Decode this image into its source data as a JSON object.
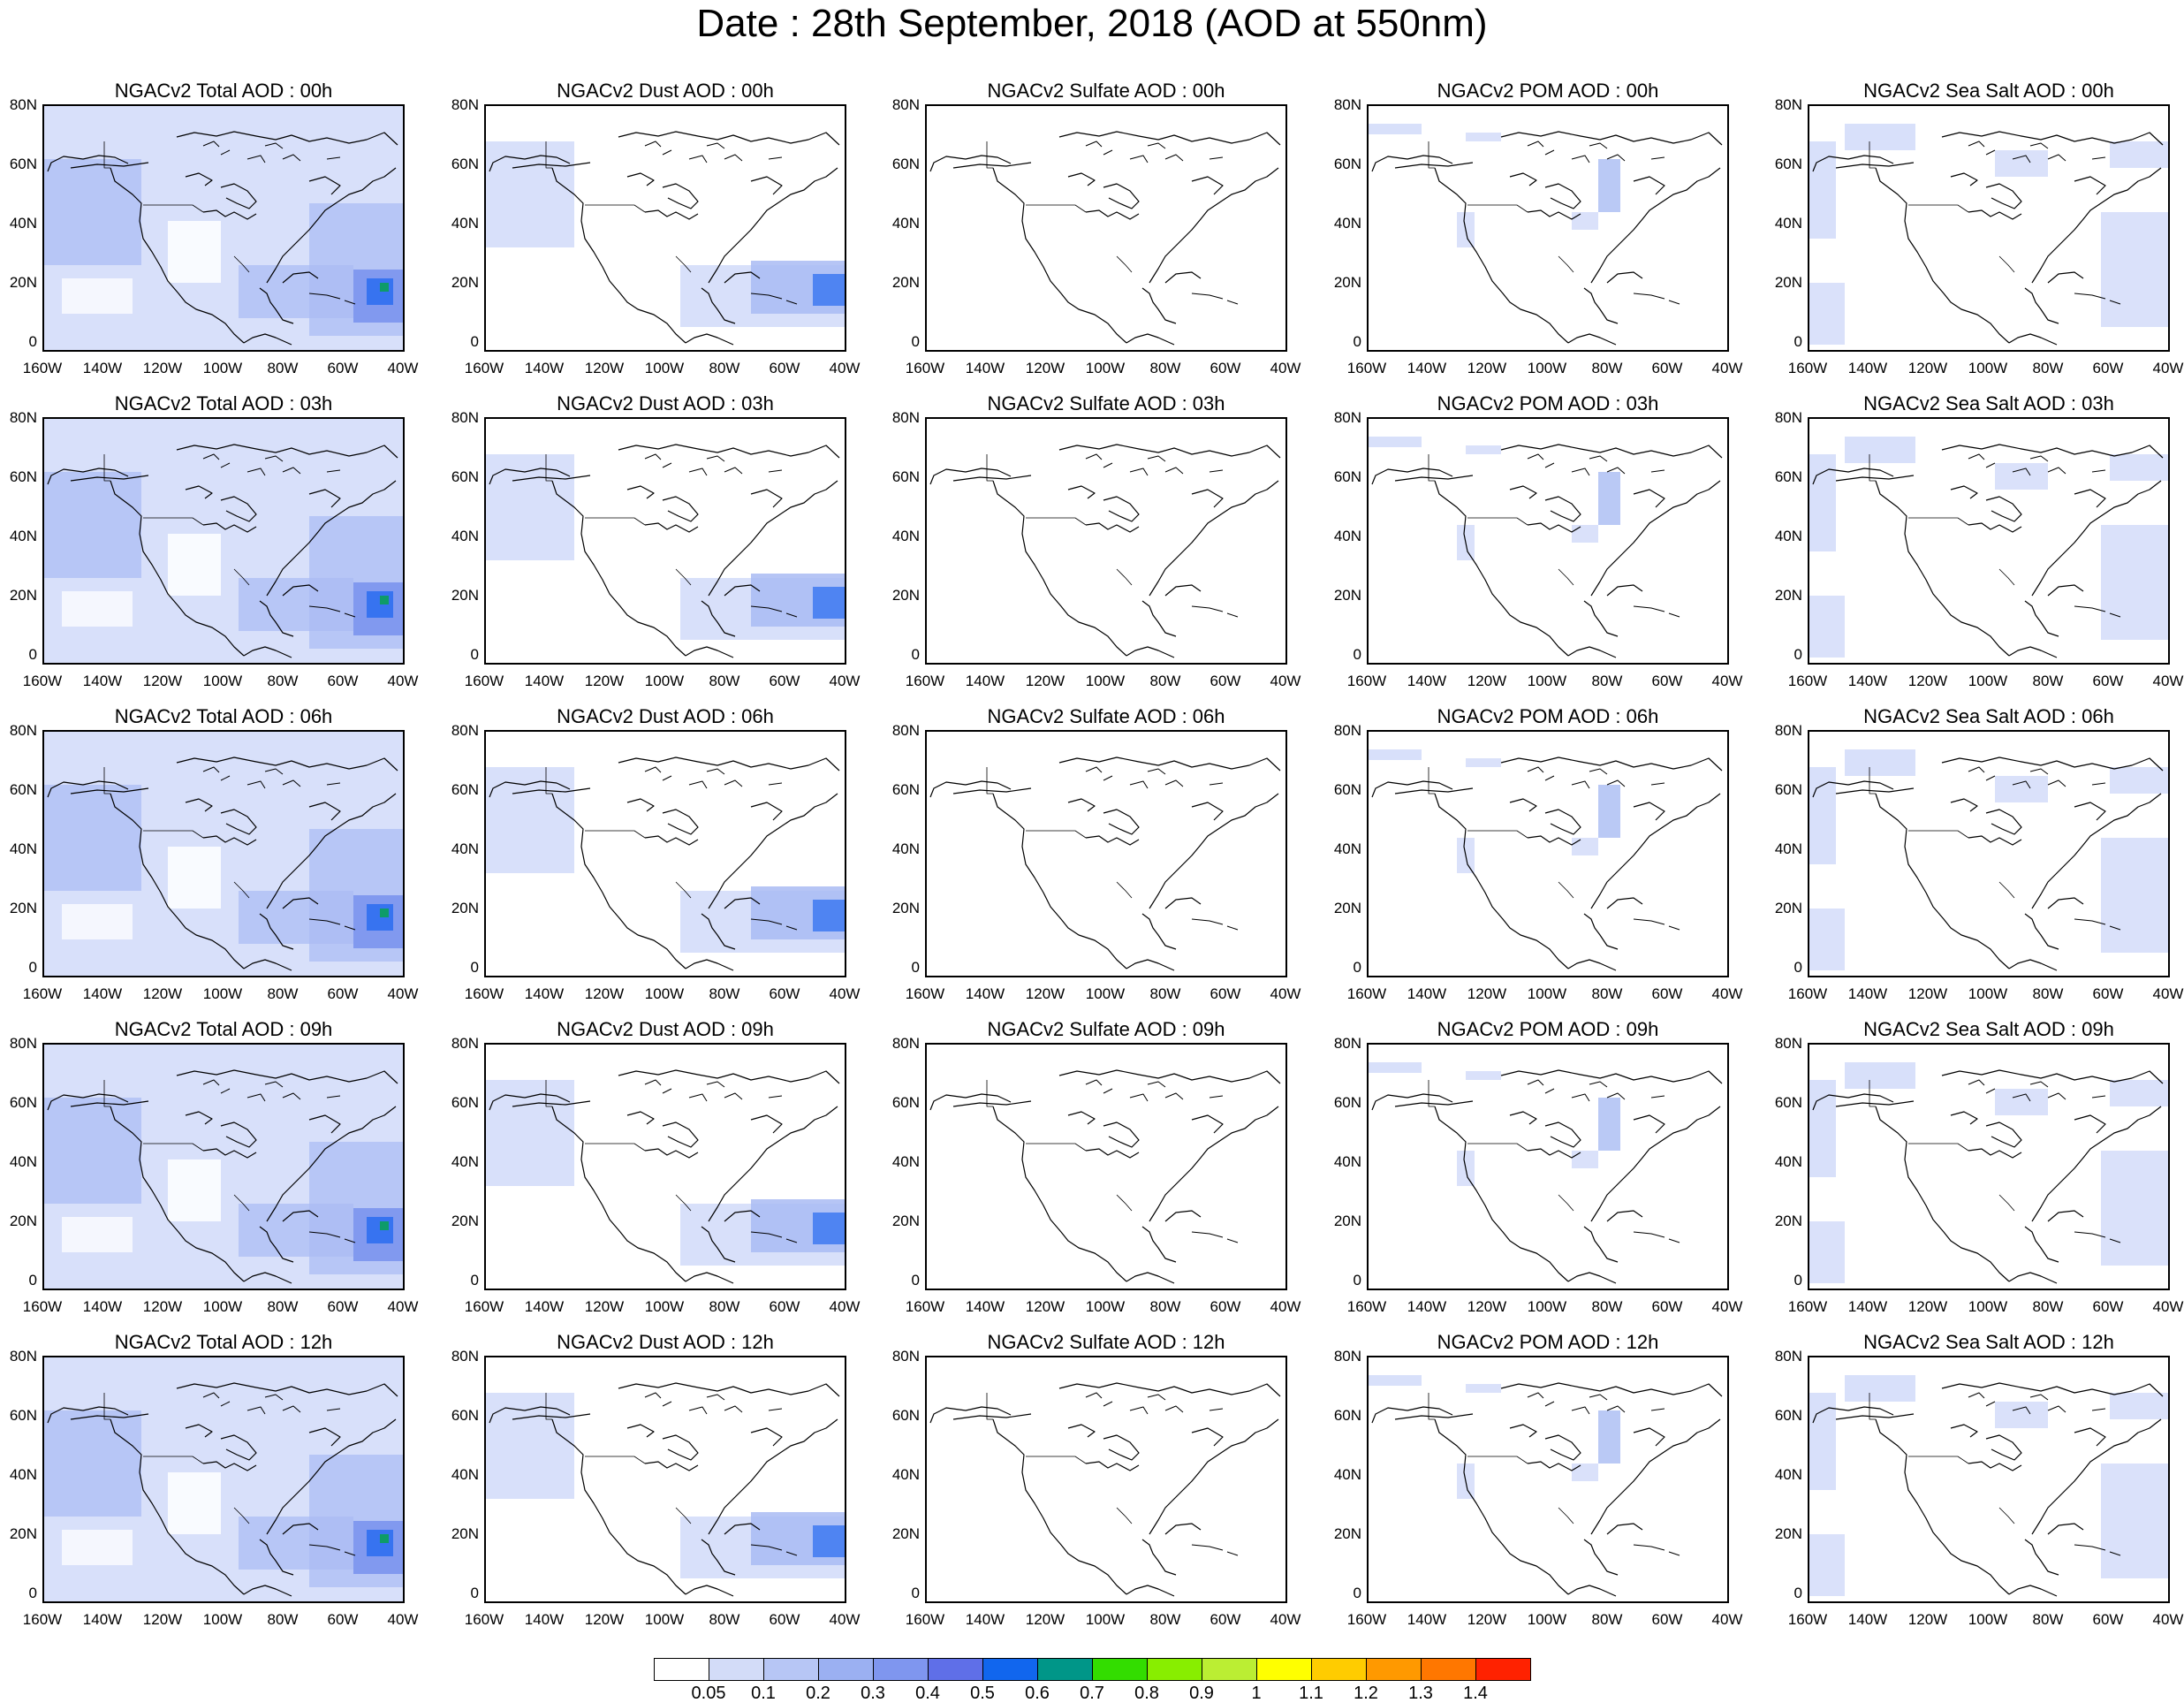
{
  "title": "Date : 28th September, 2018 (AOD at 550nm)",
  "lat_ticks": [
    "80N",
    "60N",
    "40N",
    "20N",
    "0"
  ],
  "lon_ticks": [
    "160W",
    "140W",
    "120W",
    "100W",
    "80W",
    "60W",
    "40W"
  ],
  "panel_titles": [
    [
      "NGACv2 Total AOD : 00h",
      "NGACv2 Dust AOD : 00h",
      "NGACv2 Sulfate AOD : 00h",
      "NGACv2 POM AOD : 00h",
      "NGACv2 Sea Salt AOD : 00h"
    ],
    [
      "NGACv2 Total AOD : 03h",
      "NGACv2 Dust AOD : 03h",
      "NGACv2 Sulfate AOD : 03h",
      "NGACv2 POM AOD : 03h",
      "NGACv2 Sea Salt AOD : 03h"
    ],
    [
      "NGACv2 Total AOD : 06h",
      "NGACv2 Dust AOD : 06h",
      "NGACv2 Sulfate AOD : 06h",
      "NGACv2 POM AOD : 06h",
      "NGACv2 Sea Salt AOD : 06h"
    ],
    [
      "NGACv2 Total AOD : 09h",
      "NGACv2 Dust AOD : 09h",
      "NGACv2 Sulfate AOD : 09h",
      "NGACv2 POM AOD : 09h",
      "NGACv2 Sea Salt  AOD : 09h"
    ],
    [
      "NGACv2 Total AOD  : 12h",
      "NGACv2 Dust AOD : 12h",
      "NGACv2 Sulfate AOD : 12h",
      "NGACv2 POM  AOD : 12h",
      "NGACv2 Sea Salt  AOD : 12h"
    ]
  ],
  "colorbar": {
    "labels": [
      "0.05",
      "0.1",
      "0.2",
      "0.3",
      "0.4",
      "0.5",
      "0.6",
      "0.7",
      "0.8",
      "0.9",
      "1",
      "1.1",
      "1.2",
      "1.3",
      "1.4"
    ],
    "colors": [
      "#ffffff",
      "#d3dcf8",
      "#b7c6f5",
      "#9bb0f2",
      "#7f96ef",
      "#5f6fe8",
      "#1166ee",
      "#009688",
      "#33dd00",
      "#88ee00",
      "#bbee33",
      "#ffff00",
      "#ffcc00",
      "#ff9900",
      "#ff7700",
      "#ff2200"
    ]
  },
  "map_colors": {
    "light": "#d6defa",
    "medium": "#a9bbf3",
    "strong": "#7b93ee",
    "deep": "#2f6ff0",
    "green": "#0aa05a"
  }
}
